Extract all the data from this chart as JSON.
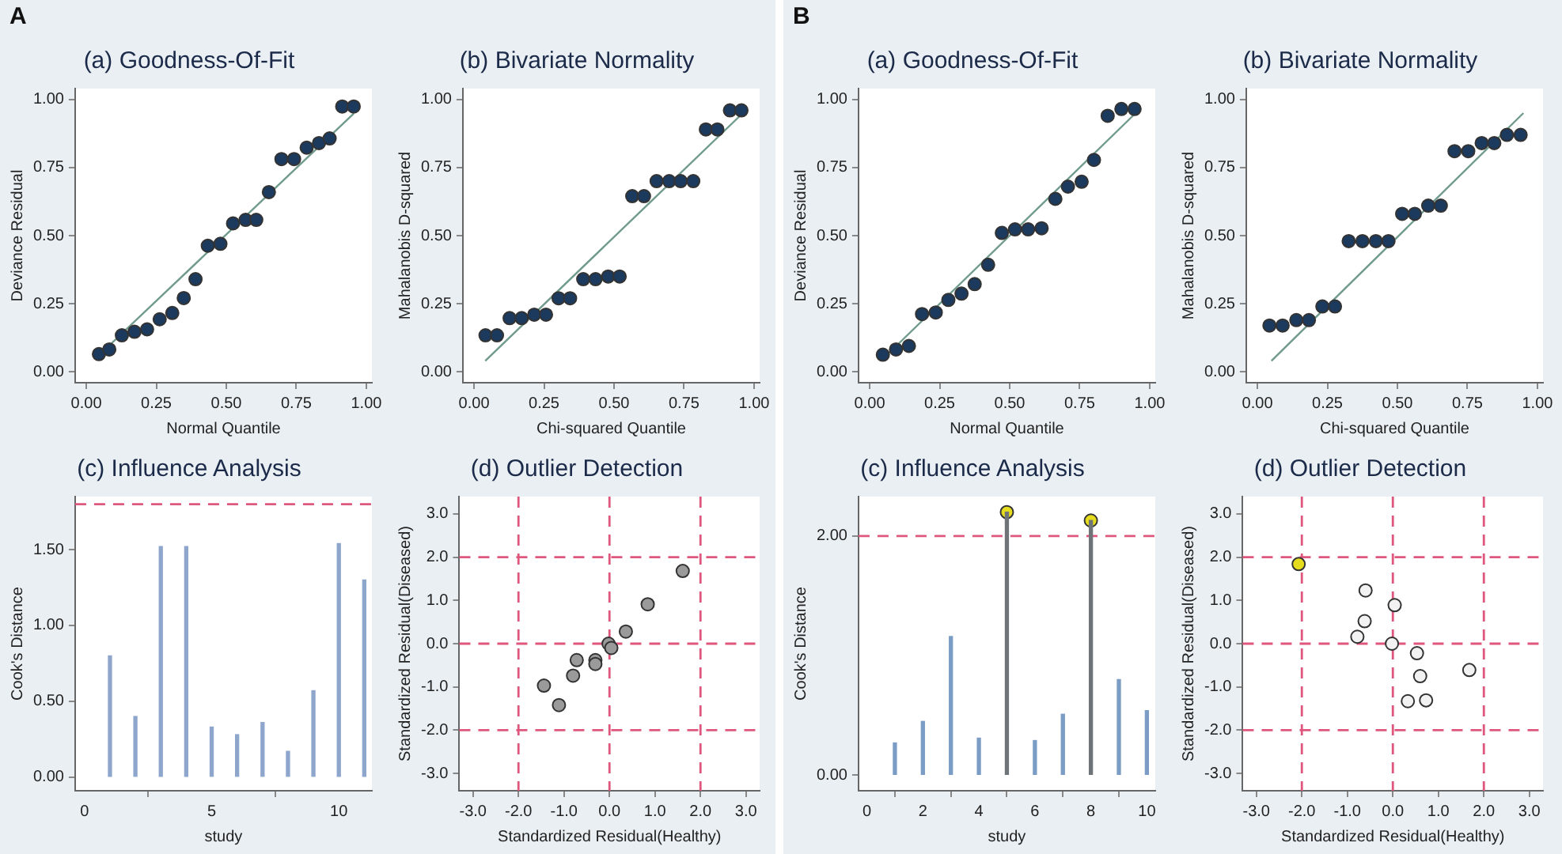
{
  "chart_data": [
    {
      "type": "scatter",
      "title": "(a) Goodness-Of-Fit",
      "xlabel": "Normal Quantile",
      "ylabel": "Deviance Residual",
      "annotations": [
        "A"
      ],
      "grid": false,
      "legend": false,
      "marker": "circle",
      "xlim": [
        -0.04,
        1.02
      ],
      "ylim": [
        -0.04,
        1.04
      ],
      "xticks": [
        {
          "value": 0,
          "label": "0.00"
        },
        {
          "value": 0.25,
          "label": "0.25"
        },
        {
          "value": 0.5,
          "label": "0.50"
        },
        {
          "value": 0.75,
          "label": "0.75"
        },
        {
          "value": 1,
          "label": "1.00"
        }
      ],
      "yticks": [
        {
          "value": 0,
          "label": "0.00"
        },
        {
          "value": 0.25,
          "label": "0.25"
        },
        {
          "value": 0.5,
          "label": "0.50"
        },
        {
          "value": 0.75,
          "label": "0.75"
        },
        {
          "value": 1,
          "label": "1.00"
        }
      ],
      "series": [
        {
          "type": "scatter",
          "color": "#1b3a5e",
          "x": [
            0.045,
            0.082,
            0.127,
            0.172,
            0.217,
            0.262,
            0.307,
            0.348,
            0.39,
            0.434,
            0.479,
            0.524,
            0.569,
            0.607,
            0.652,
            0.697,
            0.742,
            0.787,
            0.831,
            0.869,
            0.914,
            0.955
          ],
          "values": [
            0.065,
            0.082,
            0.134,
            0.147,
            0.156,
            0.193,
            0.216,
            0.271,
            0.34,
            0.463,
            0.47,
            0.545,
            0.558,
            0.558,
            0.66,
            0.781,
            0.781,
            0.823,
            0.84,
            0.857,
            0.974,
            0.974
          ]
        },
        {
          "type": "line",
          "marker": "none",
          "color": "#6f9a8c",
          "x": [
            0.034,
            0.955
          ],
          "values": [
            0.05,
            0.948
          ]
        }
      ]
    },
    {
      "type": "scatter",
      "title": "(b) Bivariate Normality",
      "xlabel": "Chi-squared Quantile",
      "ylabel": "Mahalanobis D-squared",
      "grid": false,
      "legend": false,
      "marker": "circle",
      "xlim": [
        -0.04,
        1.02
      ],
      "ylim": [
        -0.04,
        1.04
      ],
      "xticks": [
        {
          "value": 0,
          "label": "0.00"
        },
        {
          "value": 0.25,
          "label": "0.25"
        },
        {
          "value": 0.5,
          "label": "0.50"
        },
        {
          "value": 0.75,
          "label": "0.75"
        },
        {
          "value": 1,
          "label": "1.00"
        }
      ],
      "yticks": [
        {
          "value": 0,
          "label": "0.00"
        },
        {
          "value": 0.25,
          "label": "0.25"
        },
        {
          "value": 0.5,
          "label": "0.50"
        },
        {
          "value": 0.75,
          "label": "0.75"
        },
        {
          "value": 1,
          "label": "1.00"
        }
      ],
      "series": [
        {
          "type": "scatter",
          "color": "#1b3a5e",
          "x": [
            0.041,
            0.082,
            0.127,
            0.17,
            0.215,
            0.257,
            0.302,
            0.343,
            0.39,
            0.434,
            0.479,
            0.52,
            0.565,
            0.607,
            0.652,
            0.697,
            0.738,
            0.783,
            0.828,
            0.869,
            0.914,
            0.955
          ],
          "values": [
            0.134,
            0.134,
            0.197,
            0.197,
            0.21,
            0.21,
            0.27,
            0.27,
            0.34,
            0.34,
            0.35,
            0.35,
            0.645,
            0.645,
            0.7,
            0.7,
            0.7,
            0.7,
            0.89,
            0.89,
            0.96,
            0.96
          ]
        },
        {
          "type": "line",
          "marker": "none",
          "color": "#6f9a8c",
          "x": [
            0.04,
            0.96
          ],
          "values": [
            0.04,
            0.95
          ]
        }
      ]
    },
    {
      "type": "bar",
      "title": "(c) Influence Analysis",
      "xlabel": "study",
      "ylabel": "Cook's Distance",
      "grid": false,
      "legend": false,
      "xlim": [
        -0.37,
        11.3
      ],
      "ylim": [
        -0.09,
        1.85
      ],
      "xticks": [
        0,
        5,
        10
      ],
      "yticks": [
        {
          "value": 0,
          "label": "0.00"
        },
        {
          "value": 0.5,
          "label": "0.50"
        },
        {
          "value": 1,
          "label": "1.00"
        },
        {
          "value": 1.5,
          "label": "1.50"
        }
      ],
      "x": [
        1,
        2,
        3,
        4,
        5,
        6,
        7,
        8,
        9,
        10,
        11
      ],
      "values": [
        0.8,
        0.4,
        1.52,
        1.52,
        0.33,
        0.28,
        0.36,
        0.17,
        0.57,
        1.54,
        1.3
      ],
      "color": "#8ea6cc",
      "ref_lines": [
        {
          "axis": "y",
          "value": 1.8,
          "color": "#e0577e",
          "line_style": "dashed"
        }
      ]
    },
    {
      "type": "scatter",
      "title": "(d) Outlier Detection",
      "xlabel": "Standardized Residual(Healthy)",
      "ylabel": "Standardized Residual(Diseased)",
      "grid": false,
      "legend": false,
      "marker": "circle",
      "xlim": [
        -3.3,
        3.3
      ],
      "ylim": [
        -3.4,
        3.4
      ],
      "xticks": [
        {
          "value": -3,
          "label": "-3.0"
        },
        {
          "value": -2,
          "label": "-2.0"
        },
        {
          "value": -1,
          "label": "-1.0"
        },
        {
          "value": 0,
          "label": "0.0"
        },
        {
          "value": 1,
          "label": "1.0"
        },
        {
          "value": 2,
          "label": "2.0"
        },
        {
          "value": 3,
          "label": "3.0"
        }
      ],
      "yticks": [
        {
          "value": -3,
          "label": "-3.0"
        },
        {
          "value": -2,
          "label": "-2.0"
        },
        {
          "value": -1,
          "label": "-1.0"
        },
        {
          "value": 0,
          "label": "0.0"
        },
        {
          "value": 1,
          "label": "1.0"
        },
        {
          "value": 2,
          "label": "2.0"
        },
        {
          "value": 3,
          "label": "3.0"
        }
      ],
      "series": [
        {
          "type": "scatter",
          "color": "#9a9a9a",
          "x": [
            -1.44,
            -1.11,
            -0.8,
            -0.72,
            -0.31,
            -0.31,
            -0.02,
            0.04,
            0.36,
            0.84,
            1.61
          ],
          "values": [
            -0.97,
            -1.42,
            -0.74,
            -0.38,
            -0.38,
            -0.47,
            0.0,
            -0.1,
            0.28,
            0.91,
            1.68
          ]
        }
      ],
      "ref_lines": [
        {
          "axis": "x",
          "value": -2,
          "color": "#e0577e",
          "line_style": "dashed"
        },
        {
          "axis": "x",
          "value": 0,
          "color": "#e0577e",
          "line_style": "dashed"
        },
        {
          "axis": "x",
          "value": 2,
          "color": "#e0577e",
          "line_style": "dashed"
        },
        {
          "axis": "y",
          "value": -2,
          "color": "#e0577e",
          "line_style": "dashed"
        },
        {
          "axis": "y",
          "value": 0,
          "color": "#e0577e",
          "line_style": "dashed"
        },
        {
          "axis": "y",
          "value": 2,
          "color": "#e0577e",
          "line_style": "dashed"
        }
      ]
    },
    {
      "type": "scatter",
      "title": "(a) Goodness-Of-Fit",
      "xlabel": "Normal Quantile",
      "ylabel": "Deviance Residual",
      "annotations": [
        "B"
      ],
      "grid": false,
      "legend": false,
      "marker": "circle",
      "xlim": [
        -0.04,
        1.02
      ],
      "ylim": [
        -0.04,
        1.04
      ],
      "xticks": [
        {
          "value": 0,
          "label": "0.00"
        },
        {
          "value": 0.25,
          "label": "0.25"
        },
        {
          "value": 0.5,
          "label": "0.50"
        },
        {
          "value": 0.75,
          "label": "0.75"
        },
        {
          "value": 1,
          "label": "1.00"
        }
      ],
      "yticks": [
        {
          "value": 0,
          "label": "0.00"
        },
        {
          "value": 0.25,
          "label": "0.25"
        },
        {
          "value": 0.5,
          "label": "0.50"
        },
        {
          "value": 0.75,
          "label": "0.75"
        },
        {
          "value": 1,
          "label": "1.00"
        }
      ],
      "series": [
        {
          "type": "scatter",
          "color": "#1b3a5e",
          "x": [
            0.047,
            0.094,
            0.14,
            0.187,
            0.236,
            0.281,
            0.328,
            0.375,
            0.423,
            0.472,
            0.519,
            0.566,
            0.614,
            0.663,
            0.708,
            0.757,
            0.801,
            0.85,
            0.899,
            0.946
          ],
          "values": [
            0.063,
            0.082,
            0.095,
            0.212,
            0.218,
            0.264,
            0.287,
            0.322,
            0.393,
            0.51,
            0.523,
            0.523,
            0.527,
            0.635,
            0.68,
            0.698,
            0.778,
            0.94,
            0.965,
            0.965
          ]
        },
        {
          "type": "line",
          "marker": "none",
          "color": "#6f9a8c",
          "x": [
            0.05,
            0.95
          ],
          "values": [
            0.05,
            0.95
          ]
        }
      ]
    },
    {
      "type": "scatter",
      "title": "(b) Bivariate Normality",
      "xlabel": "Chi-squared Quantile",
      "ylabel": "Mahalanobis D-squared",
      "grid": false,
      "legend": false,
      "marker": "circle",
      "xlim": [
        -0.04,
        1.02
      ],
      "ylim": [
        -0.04,
        1.04
      ],
      "xticks": [
        {
          "value": 0,
          "label": "0.00"
        },
        {
          "value": 0.25,
          "label": "0.25"
        },
        {
          "value": 0.5,
          "label": "0.50"
        },
        {
          "value": 0.75,
          "label": "0.75"
        },
        {
          "value": 1,
          "label": "1.00"
        }
      ],
      "yticks": [
        {
          "value": 0,
          "label": "0.00"
        },
        {
          "value": 0.25,
          "label": "0.25"
        },
        {
          "value": 0.5,
          "label": "0.50"
        },
        {
          "value": 0.75,
          "label": "0.75"
        },
        {
          "value": 1,
          "label": "1.00"
        }
      ],
      "series": [
        {
          "type": "scatter",
          "color": "#1b3a5e",
          "x": [
            0.043,
            0.09,
            0.139,
            0.184,
            0.232,
            0.277,
            0.326,
            0.375,
            0.423,
            0.468,
            0.517,
            0.562,
            0.61,
            0.655,
            0.704,
            0.753,
            0.801,
            0.846,
            0.891,
            0.94
          ],
          "values": [
            0.17,
            0.17,
            0.19,
            0.19,
            0.24,
            0.24,
            0.48,
            0.48,
            0.48,
            0.48,
            0.58,
            0.58,
            0.61,
            0.61,
            0.81,
            0.81,
            0.84,
            0.84,
            0.87,
            0.87
          ]
        },
        {
          "type": "line",
          "marker": "none",
          "color": "#6f9a8c",
          "x": [
            0.05,
            0.95
          ],
          "values": [
            0.04,
            0.95
          ]
        }
      ]
    },
    {
      "type": "bar",
      "title": "(c) Influence Analysis",
      "xlabel": "study",
      "ylabel": "Cook's Distance",
      "grid": false,
      "legend": false,
      "marker": "circle",
      "xlim": [
        -0.3,
        10.3
      ],
      "ylim": [
        -0.13,
        2.33
      ],
      "xticks": [
        0,
        2,
        4,
        6,
        8,
        10
      ],
      "yticks": [
        {
          "value": 0,
          "label": "0.00"
        },
        {
          "value": 2,
          "label": "2.00"
        }
      ],
      "series": [
        {
          "type": "bar",
          "x": [
            1,
            2,
            3,
            4,
            5,
            6,
            7,
            8,
            9,
            10
          ],
          "values": [
            0.27,
            0.45,
            1.16,
            0.31,
            2.2,
            0.29,
            0.51,
            2.13,
            0.8,
            0.54
          ],
          "colors": [
            "#7b9cc4",
            "#7b9cc4",
            "#7b9cc4",
            "#7b9cc4",
            "#6e7478",
            "#7b9cc4",
            "#7b9cc4",
            "#6e7478",
            "#7b9cc4",
            "#7b9cc4"
          ]
        },
        {
          "type": "scatter",
          "color": "#e6dc1e",
          "x": [
            5,
            8
          ],
          "values": [
            2.2,
            2.13
          ]
        }
      ],
      "ref_lines": [
        {
          "axis": "y",
          "value": 2,
          "color": "#e0577e",
          "line_style": "dashed"
        }
      ]
    },
    {
      "type": "scatter",
      "title": "(d) Outlier Detection",
      "xlabel": "Standardized Residual(Healthy)",
      "ylabel": "Standardized Residual(Diseased)",
      "grid": false,
      "legend": false,
      "marker": "circle",
      "xlim": [
        -3.3,
        3.3
      ],
      "ylim": [
        -3.4,
        3.4
      ],
      "xticks": [
        {
          "value": -3,
          "label": "-3.0"
        },
        {
          "value": -2,
          "label": "-2.0"
        },
        {
          "value": -1,
          "label": "-1.0"
        },
        {
          "value": 0,
          "label": "0.0"
        },
        {
          "value": 1,
          "label": "1.0"
        },
        {
          "value": 2,
          "label": "2.0"
        },
        {
          "value": 3,
          "label": "3.0"
        }
      ],
      "yticks": [
        {
          "value": -3,
          "label": "-3.0"
        },
        {
          "value": -2,
          "label": "-2.0"
        },
        {
          "value": -1,
          "label": "-1.0"
        },
        {
          "value": 0,
          "label": "0.0"
        },
        {
          "value": 1,
          "label": "1.0"
        },
        {
          "value": 2,
          "label": "2.0"
        },
        {
          "value": 3,
          "label": "3.0"
        }
      ],
      "series": [
        {
          "type": "scatter",
          "color": "#f2f2f2",
          "x": [
            -0.6,
            -0.62,
            -0.78,
            0.04,
            -0.02,
            0.53,
            0.6,
            0.33,
            0.73,
            1.68
          ],
          "values": [
            1.23,
            0.52,
            0.16,
            0.89,
            0.0,
            -0.22,
            -0.75,
            -1.33,
            -1.31,
            -0.61
          ]
        },
        {
          "type": "scatter",
          "color": "#e6dc1e",
          "x": [
            -2.07
          ],
          "values": [
            1.84
          ]
        }
      ],
      "ref_lines": [
        {
          "axis": "x",
          "value": -2,
          "color": "#e0577e",
          "line_style": "dashed"
        },
        {
          "axis": "x",
          "value": 0,
          "color": "#e0577e",
          "line_style": "dashed"
        },
        {
          "axis": "x",
          "value": 2,
          "color": "#e0577e",
          "line_style": "dashed"
        },
        {
          "axis": "y",
          "value": -2,
          "color": "#e0577e",
          "line_style": "dashed"
        },
        {
          "axis": "y",
          "value": 0,
          "color": "#e0577e",
          "line_style": "dashed"
        },
        {
          "axis": "y",
          "value": 2,
          "color": "#e0577e",
          "line_style": "dashed"
        }
      ]
    }
  ]
}
